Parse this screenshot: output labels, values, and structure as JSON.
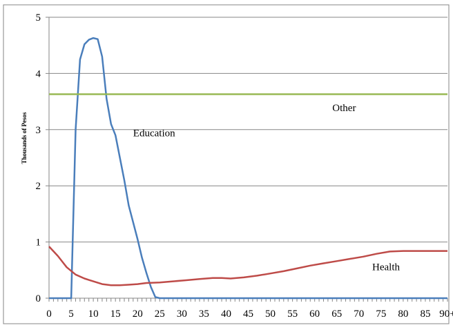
{
  "chart_data": {
    "type": "line",
    "title": "",
    "xlabel": "",
    "ylabel": "Thousands of Pesos",
    "xlim": [
      0,
      90
    ],
    "ylim": [
      0,
      5
    ],
    "grid": true,
    "x_tick_labels": [
      "0",
      "5",
      "10",
      "15",
      "20",
      "25",
      "30",
      "35",
      "40",
      "45",
      "50",
      "55",
      "60",
      "65",
      "70",
      "75",
      "80",
      "85",
      "90+"
    ],
    "y_tick_labels": [
      "0",
      "1",
      "2",
      "3",
      "4",
      "5"
    ],
    "series": [
      {
        "name": "Education",
        "color": "#4a7ebb",
        "points": [
          [
            0,
            0
          ],
          [
            1,
            0
          ],
          [
            2,
            0
          ],
          [
            3,
            0
          ],
          [
            4,
            0
          ],
          [
            5,
            0
          ],
          [
            6,
            3.0
          ],
          [
            7,
            4.25
          ],
          [
            8,
            4.52
          ],
          [
            9,
            4.6
          ],
          [
            10,
            4.63
          ],
          [
            11,
            4.61
          ],
          [
            12,
            4.3
          ],
          [
            13,
            3.55
          ],
          [
            14,
            3.1
          ],
          [
            15,
            2.9
          ],
          [
            16,
            2.5
          ],
          [
            17,
            2.1
          ],
          [
            18,
            1.65
          ],
          [
            19,
            1.35
          ],
          [
            20,
            1.05
          ],
          [
            21,
            0.72
          ],
          [
            22,
            0.45
          ],
          [
            23,
            0.2
          ],
          [
            24,
            0.02
          ],
          [
            25,
            0
          ],
          [
            30,
            0
          ],
          [
            40,
            0
          ],
          [
            50,
            0
          ],
          [
            60,
            0
          ],
          [
            70,
            0
          ],
          [
            80,
            0
          ],
          [
            90,
            0
          ]
        ],
        "label_pos": [
          19,
          2.88
        ]
      },
      {
        "name": "Health",
        "color": "#be4b48",
        "points": [
          [
            0,
            0.92
          ],
          [
            2,
            0.75
          ],
          [
            4,
            0.55
          ],
          [
            6,
            0.42
          ],
          [
            8,
            0.35
          ],
          [
            10,
            0.3
          ],
          [
            12,
            0.25
          ],
          [
            14,
            0.23
          ],
          [
            16,
            0.23
          ],
          [
            18,
            0.24
          ],
          [
            20,
            0.25
          ],
          [
            22,
            0.27
          ],
          [
            25,
            0.28
          ],
          [
            28,
            0.3
          ],
          [
            31,
            0.32
          ],
          [
            34,
            0.34
          ],
          [
            37,
            0.36
          ],
          [
            39,
            0.36
          ],
          [
            41,
            0.35
          ],
          [
            44,
            0.37
          ],
          [
            47,
            0.4
          ],
          [
            50,
            0.44
          ],
          [
            53,
            0.48
          ],
          [
            56,
            0.53
          ],
          [
            59,
            0.58
          ],
          [
            62,
            0.62
          ],
          [
            65,
            0.66
          ],
          [
            68,
            0.7
          ],
          [
            71,
            0.74
          ],
          [
            74,
            0.79
          ],
          [
            77,
            0.83
          ],
          [
            80,
            0.84
          ],
          [
            85,
            0.84
          ],
          [
            90,
            0.84
          ]
        ],
        "label_pos": [
          73,
          0.5
        ]
      },
      {
        "name": "Other",
        "color": "#98b954",
        "points": [
          [
            0,
            3.63
          ],
          [
            90,
            3.63
          ]
        ],
        "label_pos": [
          64,
          3.33
        ]
      }
    ]
  }
}
